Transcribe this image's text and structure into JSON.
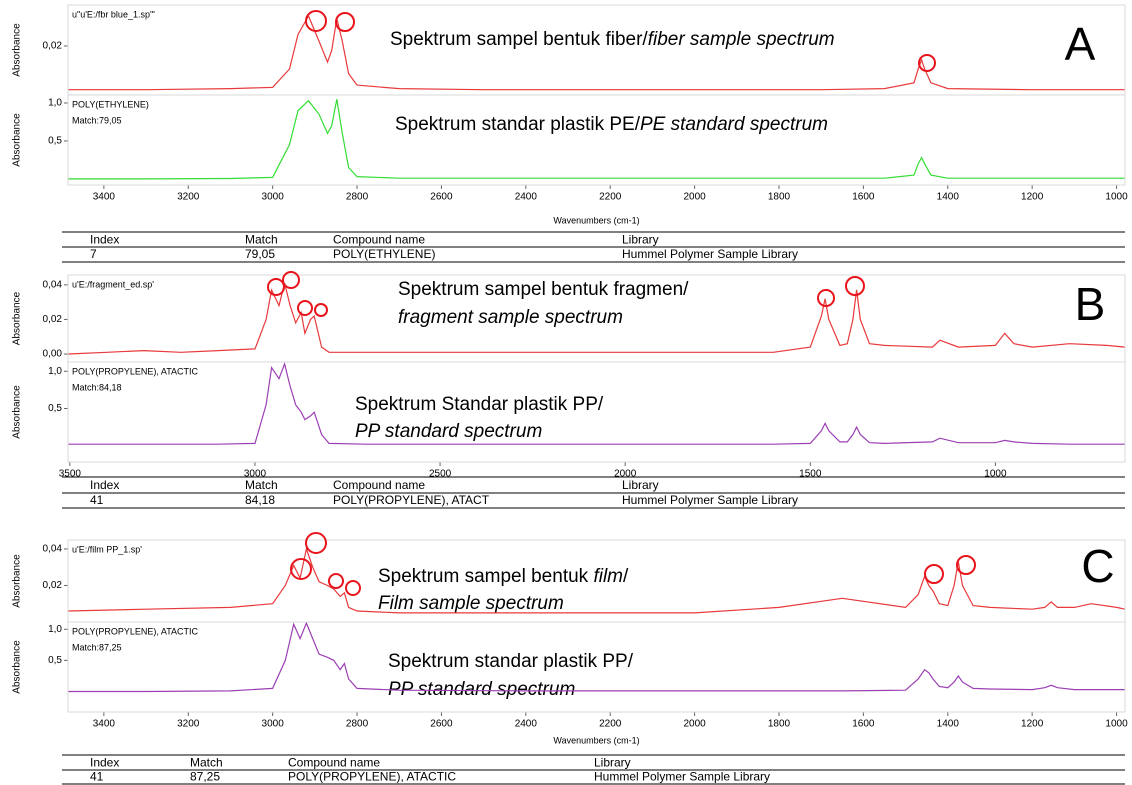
{
  "chart_data": [
    {
      "type": "line",
      "label": "A",
      "xlabel": "Wavenumbers (cm-1)",
      "xlim": [
        3485,
        980
      ],
      "xticks": [
        3400,
        3200,
        3000,
        2800,
        2600,
        2400,
        2200,
        2000,
        1800,
        1600,
        1400,
        1200,
        1000
      ],
      "x": [
        3485,
        3300,
        3100,
        3000,
        2960,
        2940,
        2915,
        2890,
        2870,
        2860,
        2848,
        2835,
        2820,
        2800,
        2700,
        2500,
        2000,
        1700,
        1550,
        1480,
        1470,
        1462,
        1455,
        1440,
        1400,
        1200,
        1000,
        980
      ],
      "subplots": [
        {
          "ylabel": "Absorbance",
          "ylim": [
            -0.0013,
            0.0378
          ],
          "yticks": [
            {
              "value": 0.02,
              "label": "0,02"
            }
          ],
          "series": [
            {
              "name": "u\"u'E:/fbr blue_1.sp'\"",
              "color": "#e8393b",
              "values": [
                0.001,
                0.001,
                0.0015,
                0.002,
                0.01,
                0.025,
                0.033,
                0.022,
                0.013,
                0.018,
                0.032,
                0.022,
                0.008,
                0.003,
                0.0015,
                0.001,
                0.001,
                0.001,
                0.0015,
                0.004,
                0.01,
                0.014,
                0.01,
                0.004,
                0.0015,
                0.001,
                0.001,
                0.001
              ]
            }
          ],
          "annotation": [
            [
              {
                "text": "Spektrum sampel bentuk fiber/",
                "italic": false
              },
              {
                "text": "fiber sample spectrum",
                "italic": true
              }
            ]
          ]
        },
        {
          "ylabel": "Absorbance",
          "ylim": [
            -0.08,
            1.105
          ],
          "yticks": [
            {
              "value": 1.0,
              "label": "1,0"
            },
            {
              "value": 0.5,
              "label": "0,5"
            }
          ],
          "series": [
            {
              "name": "POLY(ETHYLENE)",
              "color": "#33dd33",
              "values": [
                0,
                0,
                0.005,
                0.02,
                0.45,
                0.9,
                1.03,
                0.85,
                0.6,
                0.7,
                1.05,
                0.6,
                0.15,
                0.03,
                0.01,
                0.01,
                0.01,
                0.01,
                0.01,
                0.05,
                0.2,
                0.28,
                0.2,
                0.05,
                0.01,
                0.01,
                0.01,
                0.01
              ]
            }
          ],
          "match": "Match:79,05",
          "annotation": [
            [
              {
                "text": "Spektrum standar plastik PE/",
                "italic": false
              },
              {
                "text": "PE standard spectrum",
                "italic": true
              }
            ]
          ]
        }
      ],
      "table": {
        "headers": [
          "Index",
          "Match",
          "Compound name",
          "Library"
        ],
        "row": [
          "7",
          "79,05",
          "POLY(ETHYLENE)",
          "Hummel Polymer Sample Library"
        ]
      }
    },
    {
      "type": "line",
      "label": "B",
      "xlim": [
        3505,
        650
      ],
      "xticks": [
        3500,
        3000,
        2500,
        2000,
        1500,
        1000
      ],
      "x": [
        3505,
        3400,
        3300,
        3200,
        3100,
        3000,
        2970,
        2955,
        2935,
        2920,
        2905,
        2890,
        2875,
        2865,
        2850,
        2840,
        2820,
        2800,
        2700,
        2500,
        2000,
        1600,
        1500,
        1470,
        1460,
        1450,
        1420,
        1400,
        1385,
        1375,
        1365,
        1340,
        1300,
        1170,
        1150,
        1100,
        1000,
        975,
        950,
        900,
        800,
        700,
        650
      ],
      "subplots": [
        {
          "ylabel": "Absorbance",
          "ylim": [
            -0.0046,
            0.0457
          ],
          "yticks": [
            {
              "value": 0.04,
              "label": "0,04"
            },
            {
              "value": 0.02,
              "label": "0,02"
            },
            {
              "value": 0,
              "label": "0,00"
            }
          ],
          "series": [
            {
              "name": "u'E:/fragment_ed.sp'",
              "color": "#e8393b",
              "values": [
                0,
                0.001,
                0.002,
                0.001,
                0.002,
                0.003,
                0.02,
                0.037,
                0.028,
                0.041,
                0.028,
                0.018,
                0.024,
                0.012,
                0.02,
                0.022,
                0.004,
                0.001,
                0.001,
                0.001,
                0.001,
                0.001,
                0.004,
                0.022,
                0.032,
                0.02,
                0.005,
                0.006,
                0.02,
                0.037,
                0.02,
                0.006,
                0.005,
                0.004,
                0.008,
                0.004,
                0.005,
                0.012,
                0.006,
                0.004,
                0.006,
                0.005,
                0.004
              ]
            }
          ],
          "annotation": [
            [
              {
                "text": "Spektrum sampel bentuk fragmen/",
                "italic": false
              }
            ],
            [
              {
                "text": "fragment sample spectrum",
                "italic": true
              }
            ]
          ]
        },
        {
          "ylabel": "Absorbance",
          "ylim": [
            -0.22,
            1.125
          ],
          "yticks": [
            {
              "value": 1.0,
              "label": "1,0"
            },
            {
              "value": 0.5,
              "label": "0,5"
            }
          ],
          "series": [
            {
              "name": "POLY(PROPYLENE), ATACTIC",
              "color": "#9b3fb5",
              "values": [
                0.02,
                0.02,
                0.02,
                0.02,
                0.02,
                0.03,
                0.55,
                1.05,
                0.9,
                1.1,
                0.8,
                0.55,
                0.45,
                0.35,
                0.4,
                0.45,
                0.15,
                0.03,
                0.02,
                0.02,
                0.02,
                0.02,
                0.03,
                0.2,
                0.3,
                0.2,
                0.05,
                0.05,
                0.15,
                0.25,
                0.15,
                0.04,
                0.03,
                0.05,
                0.1,
                0.04,
                0.04,
                0.07,
                0.05,
                0.03,
                0.02,
                0.02,
                0.02
              ]
            }
          ],
          "match": "Match:84,18",
          "annotation": [
            [
              {
                "text": "Spektrum Standar plastik PP/",
                "italic": false
              }
            ],
            [
              {
                "text": "PP standard spectrum",
                "italic": true
              }
            ]
          ]
        }
      ],
      "table": {
        "headers": [
          "Index",
          "Match",
          "Compound name",
          "Library"
        ],
        "row": [
          "41",
          "84,18",
          "POLY(PROPYLENE), ATACT",
          "Hummel Polymer Sample Library"
        ]
      }
    },
    {
      "type": "line",
      "label": "C",
      "xlabel": "Wavenumbers (cm-1)",
      "xlim": [
        3485,
        980
      ],
      "xticks": [
        3400,
        3200,
        3000,
        2800,
        2600,
        2400,
        2200,
        2000,
        1800,
        1600,
        1400,
        1200,
        1000
      ],
      "x": [
        3485,
        3300,
        3100,
        3000,
        2970,
        2950,
        2935,
        2920,
        2905,
        2890,
        2870,
        2855,
        2840,
        2830,
        2820,
        2800,
        2700,
        2400,
        2000,
        1800,
        1650,
        1500,
        1470,
        1455,
        1445,
        1435,
        1420,
        1400,
        1385,
        1375,
        1365,
        1340,
        1300,
        1200,
        1170,
        1155,
        1140,
        1100,
        1060,
        1000,
        980
      ],
      "subplots": [
        {
          "ylabel": "Absorbance",
          "ylim": [
            0,
            0.0449
          ],
          "yticks": [
            {
              "value": 0.04,
              "label": "0,04"
            },
            {
              "value": 0.02,
              "label": "0,02"
            }
          ],
          "series": [
            {
              "name": "u'E:/film PP_1.sp'",
              "color": "#e8393b",
              "values": [
                0.006,
                0.007,
                0.008,
                0.01,
                0.02,
                0.031,
                0.024,
                0.04,
                0.03,
                0.022,
                0.02,
                0.018,
                0.014,
                0.016,
                0.008,
                0.006,
                0.005,
                0.005,
                0.005,
                0.008,
                0.013,
                0.008,
                0.015,
                0.025,
                0.02,
                0.017,
                0.01,
                0.009,
                0.02,
                0.033,
                0.02,
                0.009,
                0.008,
                0.007,
                0.008,
                0.011,
                0.008,
                0.008,
                0.01,
                0.008,
                0.007
              ]
            }
          ],
          "annotation": [
            [
              {
                "text": "Spektrum sampel bentuk ",
                "italic": false
              },
              {
                "text": "film",
                "italic": true
              },
              {
                "text": "/",
                "italic": false
              }
            ],
            [
              {
                "text": "Film sample spectrum",
                "italic": true
              }
            ]
          ]
        },
        {
          "ylabel": "Absorbance",
          "ylim": [
            -0.33,
            1.117
          ],
          "yticks": [
            {
              "value": 1.0,
              "label": "1,0"
            },
            {
              "value": 0.5,
              "label": "0,5"
            }
          ],
          "series": [
            {
              "name": "POLY(PROPYLENE), ATACTIC",
              "color": "#9b3fb5",
              "values": [
                0,
                0,
                0.01,
                0.05,
                0.5,
                1.08,
                0.85,
                1.1,
                0.85,
                0.6,
                0.55,
                0.5,
                0.35,
                0.45,
                0.2,
                0.05,
                0.02,
                0.01,
                0.01,
                0.01,
                0.01,
                0.02,
                0.2,
                0.35,
                0.3,
                0.2,
                0.08,
                0.06,
                0.15,
                0.25,
                0.15,
                0.05,
                0.04,
                0.03,
                0.06,
                0.1,
                0.06,
                0.03,
                0.03,
                0.03,
                0.03
              ]
            }
          ],
          "match": "Match:87,25",
          "annotation": [
            [
              {
                "text": "Spektrum standar plastik PP/",
                "italic": false
              }
            ],
            [
              {
                "text": "PP standard spectrum",
                "italic": true
              }
            ]
          ]
        }
      ],
      "table": {
        "headers": [
          "Index",
          "Match",
          "Compound name",
          "Library"
        ],
        "row": [
          "41",
          "87,25",
          "POLY(PROPYLENE), ATACTIC",
          "Hummel Polymer Sample Library"
        ]
      }
    }
  ]
}
